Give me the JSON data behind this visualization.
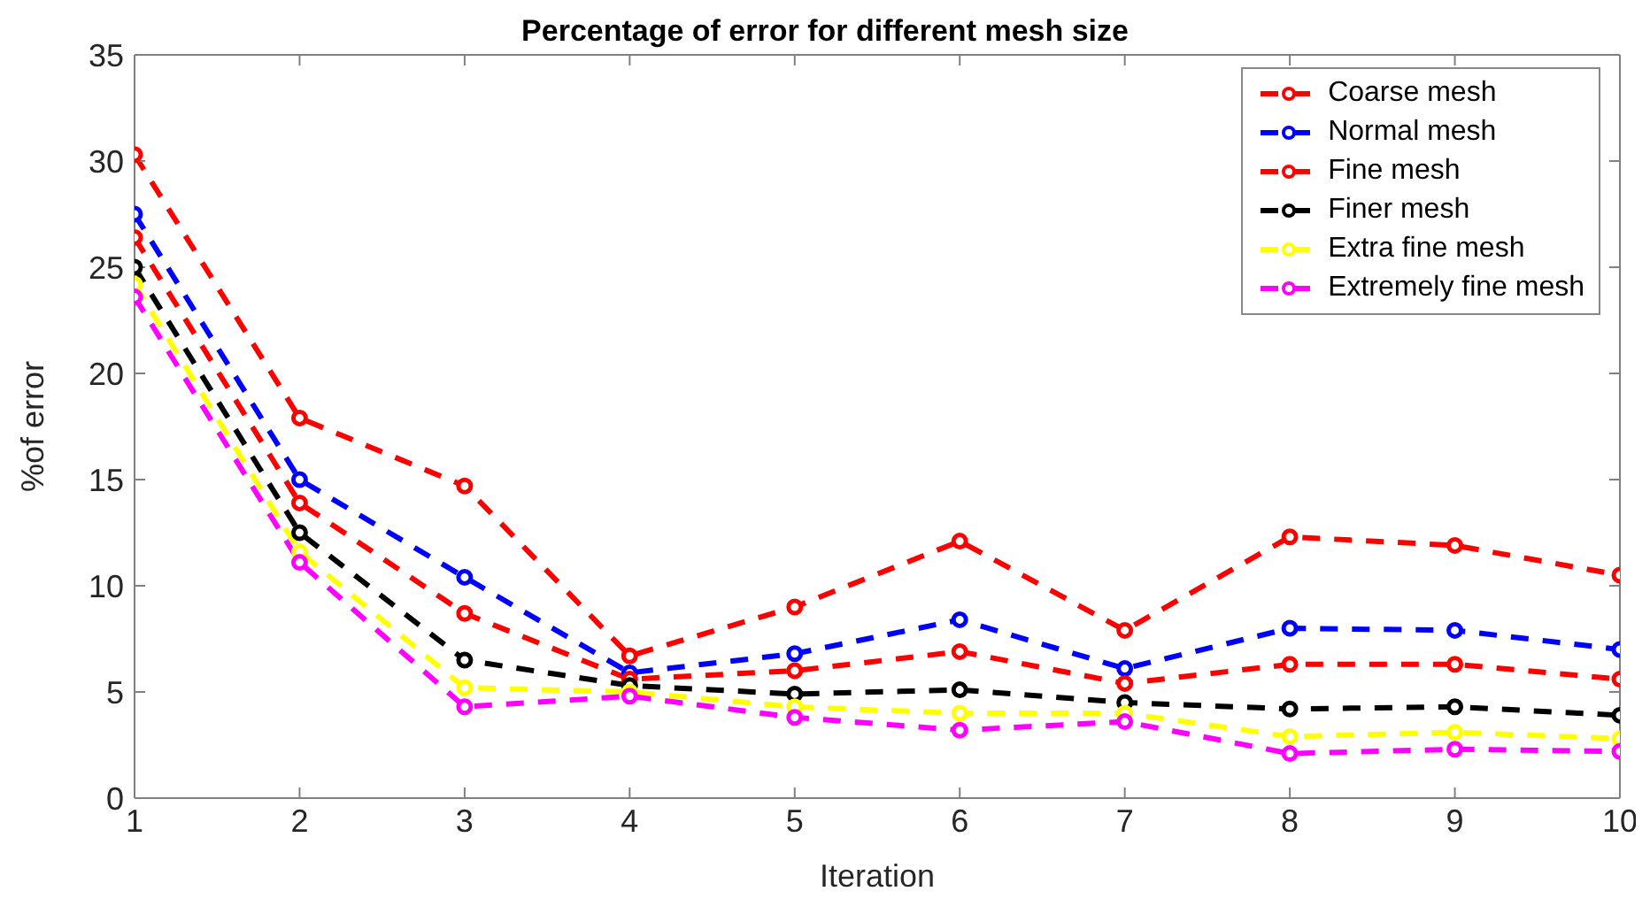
{
  "chart_data": {
    "type": "line",
    "title": "Percentage of error for different mesh size",
    "xlabel": "Iteration",
    "ylabel": "%of error",
    "x": [
      1,
      2,
      3,
      4,
      5,
      6,
      7,
      8,
      9,
      10
    ],
    "series": [
      {
        "name": "Coarse mesh",
        "color": "#ff0000",
        "values": [
          30.3,
          17.9,
          14.7,
          6.7,
          9.0,
          12.1,
          7.9,
          12.3,
          11.9,
          10.5
        ]
      },
      {
        "name": "Normal mesh",
        "color": "#0000ff",
        "values": [
          27.5,
          15.0,
          10.4,
          5.9,
          6.8,
          8.4,
          6.1,
          8.0,
          7.9,
          7.0
        ]
      },
      {
        "name": "Fine mesh",
        "color": "#ff0000",
        "values": [
          26.4,
          13.9,
          8.7,
          5.6,
          6.0,
          6.9,
          5.4,
          6.3,
          6.3,
          5.6
        ]
      },
      {
        "name": "Finer mesh",
        "color": "#000000",
        "values": [
          25.0,
          12.5,
          6.5,
          5.3,
          4.9,
          5.1,
          4.5,
          4.2,
          4.3,
          3.9
        ]
      },
      {
        "name": "Extra fine mesh",
        "color": "#ffff00",
        "values": [
          24.2,
          11.6,
          5.2,
          5.0,
          4.3,
          4.0,
          4.0,
          2.9,
          3.1,
          2.8
        ]
      },
      {
        "name": "Extremely fine mesh",
        "color": "#ff00ff",
        "values": [
          23.6,
          11.1,
          4.3,
          4.8,
          3.8,
          3.2,
          3.6,
          2.1,
          2.3,
          2.2
        ]
      }
    ],
    "xlim": [
      1,
      10
    ],
    "xticks": [
      1,
      2,
      3,
      4,
      5,
      6,
      7,
      8,
      9,
      10
    ],
    "ylim": [
      0,
      35
    ],
    "yticks": [
      0,
      5,
      10,
      15,
      20,
      25,
      30,
      35
    ],
    "grid": false,
    "legend": "top right",
    "marker": "circle",
    "line_style": "dashed"
  }
}
